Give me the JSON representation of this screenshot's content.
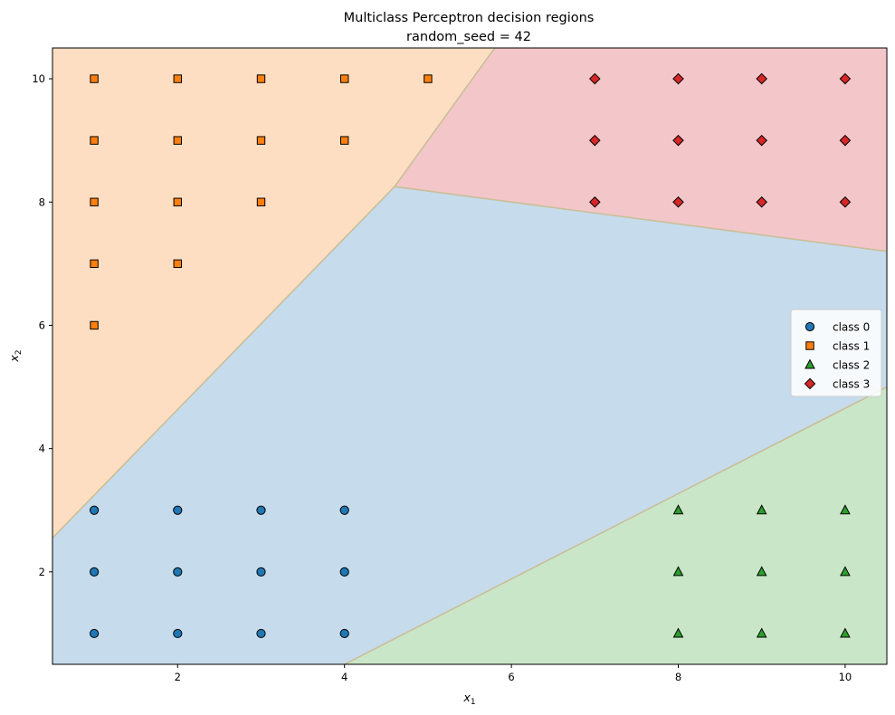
{
  "chart_data": {
    "type": "scatter",
    "title": [
      "Multiclass Perceptron decision regions",
      "random_seed = 42"
    ],
    "xlabel": {
      "base": "x",
      "sub": "1"
    },
    "ylabel": {
      "base": "x",
      "sub": "2"
    },
    "xlim": [
      0.5,
      10.5
    ],
    "ylim": [
      0.5,
      10.5
    ],
    "xticks": [
      2,
      4,
      6,
      8,
      10
    ],
    "yticks": [
      2,
      4,
      6,
      8,
      10
    ],
    "grid": false,
    "legend_position": "right",
    "regions": [
      {
        "class": "class 0",
        "color": "#c6dbec",
        "polygon": [
          [
            0.5,
            0.5
          ],
          [
            4.0,
            0.5
          ],
          [
            10.5,
            5.0
          ],
          [
            10.5,
            7.2
          ],
          [
            4.6,
            8.25
          ],
          [
            0.5,
            2.55
          ]
        ]
      },
      {
        "class": "class 1",
        "color": "#fedec2",
        "polygon": [
          [
            0.5,
            2.55
          ],
          [
            4.6,
            8.25
          ],
          [
            5.8,
            10.5
          ],
          [
            0.5,
            10.5
          ]
        ]
      },
      {
        "class": "class 2",
        "color": "#cae6c8",
        "polygon": [
          [
            4.0,
            0.5
          ],
          [
            10.5,
            0.5
          ],
          [
            10.5,
            5.0
          ]
        ]
      },
      {
        "class": "class 3",
        "color": "#f3c7c9",
        "polygon": [
          [
            4.6,
            8.25
          ],
          [
            10.5,
            7.2
          ],
          [
            10.5,
            10.5
          ],
          [
            5.8,
            10.5
          ]
        ]
      }
    ],
    "series": [
      {
        "name": "class 0",
        "marker": "circle",
        "color": "#1f77b4",
        "points": [
          [
            1,
            1
          ],
          [
            1,
            2
          ],
          [
            1,
            3
          ],
          [
            2,
            1
          ],
          [
            2,
            2
          ],
          [
            2,
            3
          ],
          [
            3,
            1
          ],
          [
            3,
            2
          ],
          [
            3,
            3
          ],
          [
            4,
            1
          ],
          [
            4,
            2
          ],
          [
            4,
            3
          ]
        ]
      },
      {
        "name": "class 1",
        "marker": "square",
        "color": "#ff7f0e",
        "points": [
          [
            1,
            6
          ],
          [
            1,
            7
          ],
          [
            1,
            8
          ],
          [
            1,
            9
          ],
          [
            1,
            10
          ],
          [
            2,
            7
          ],
          [
            2,
            8
          ],
          [
            2,
            9
          ],
          [
            2,
            10
          ],
          [
            3,
            8
          ],
          [
            3,
            9
          ],
          [
            3,
            10
          ],
          [
            4,
            9
          ],
          [
            4,
            10
          ],
          [
            5,
            10
          ]
        ]
      },
      {
        "name": "class 2",
        "marker": "triangle",
        "color": "#2ca02c",
        "points": [
          [
            8,
            1
          ],
          [
            8,
            2
          ],
          [
            8,
            3
          ],
          [
            9,
            1
          ],
          [
            9,
            2
          ],
          [
            9,
            3
          ],
          [
            10,
            1
          ],
          [
            10,
            2
          ],
          [
            10,
            3
          ]
        ]
      },
      {
        "name": "class 3",
        "marker": "diamond",
        "color": "#d62728",
        "points": [
          [
            7,
            8
          ],
          [
            7,
            9
          ],
          [
            7,
            10
          ],
          [
            8,
            8
          ],
          [
            8,
            9
          ],
          [
            8,
            10
          ],
          [
            9,
            8
          ],
          [
            9,
            9
          ],
          [
            9,
            10
          ],
          [
            10,
            8
          ],
          [
            10,
            9
          ],
          [
            10,
            10
          ]
        ]
      }
    ]
  }
}
